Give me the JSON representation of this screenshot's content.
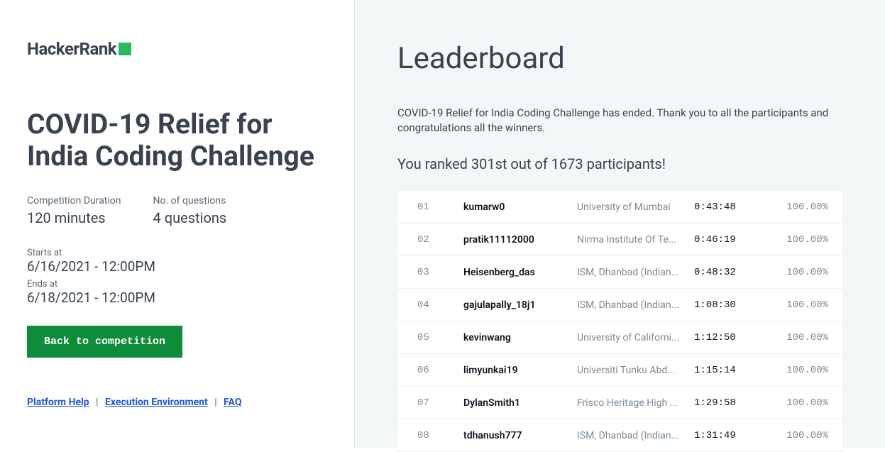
{
  "logo": {
    "text": "HackerRank",
    "accent_color": "#2ab95f"
  },
  "challenge": {
    "title": "COVID-19 Relief for India Coding Challenge",
    "duration_label": "Competition Duration",
    "duration_value": "120 minutes",
    "questions_label": "No. of questions",
    "questions_value": "4 questions",
    "starts_label": "Starts at",
    "starts_value": "6/16/2021 - 12:00PM",
    "ends_label": "Ends at",
    "ends_value": "6/18/2021 - 12:00PM",
    "back_button": "Back to competition"
  },
  "footer": {
    "help": "Platform Help",
    "env": "Execution Environment",
    "faq": "FAQ"
  },
  "leaderboard": {
    "title": "Leaderboard",
    "message": "COVID-19 Relief for India Coding Challenge has ended. Thank you to all the participants and congratulations all the winners.",
    "rank_message": "You ranked 301st out of 1673 participants!",
    "rows": [
      {
        "rank": "01",
        "user": "kumarw0",
        "institution": "University of Mumbai",
        "time": "0:43:48",
        "score": "100.00%"
      },
      {
        "rank": "02",
        "user": "pratik11112000",
        "institution": "Nirma Institute Of Te...",
        "time": "0:46:19",
        "score": "100.00%"
      },
      {
        "rank": "03",
        "user": "Heisenberg_das",
        "institution": "ISM, Dhanbad (Indian...",
        "time": "0:48:32",
        "score": "100.00%"
      },
      {
        "rank": "04",
        "user": "gajulapally_18j1",
        "institution": "ISM, Dhanbad (Indian...",
        "time": "1:08:30",
        "score": "100.00%"
      },
      {
        "rank": "05",
        "user": "kevinwang",
        "institution": "University of Californi...",
        "time": "1:12:50",
        "score": "100.00%"
      },
      {
        "rank": "06",
        "user": "limyunkai19",
        "institution": "Universiti Tunku Abd...",
        "time": "1:15:14",
        "score": "100.00%"
      },
      {
        "rank": "07",
        "user": "DylanSmith1",
        "institution": "Frisco Heritage High ...",
        "time": "1:29:58",
        "score": "100.00%"
      },
      {
        "rank": "08",
        "user": "tdhanush777",
        "institution": "ISM, Dhanbad (Indian...",
        "time": "1:31:49",
        "score": "100.00%"
      }
    ]
  }
}
